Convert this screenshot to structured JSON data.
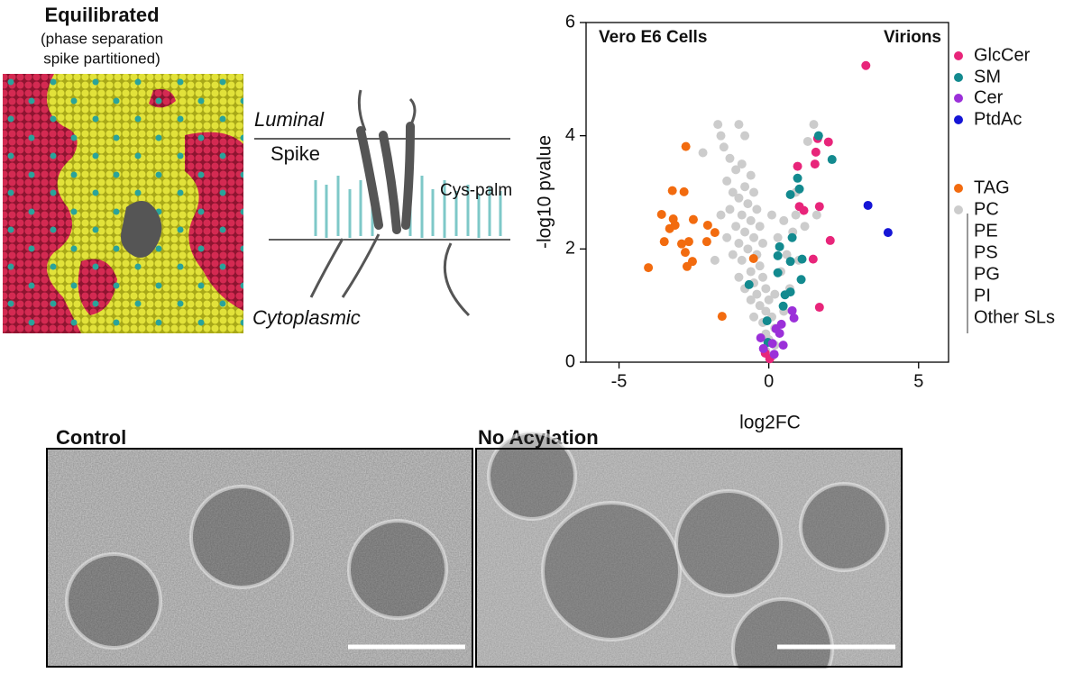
{
  "model": {
    "title": "Equilibrated",
    "subtitle_lines": [
      "(phase separation",
      "spike partitioned)"
    ],
    "luminal": "Luminal",
    "spike": "Spike",
    "cys_palm": "Cys-palm",
    "cytoplasmic": "Cytoplasmic"
  },
  "chart_data": {
    "type": "scatter",
    "xlabel": "log2FC",
    "ylabel": "-log10 pvalue",
    "annotations": [
      "Vero E6 Cells",
      "Virions"
    ],
    "xlim": [
      -6.1,
      6
    ],
    "xticks": [
      -5,
      0,
      5
    ],
    "ylim": [
      0,
      6
    ],
    "yticks": [
      0,
      2,
      4,
      6
    ],
    "series": [
      {
        "name": "GlcCer",
        "color": "#e8257a",
        "x": [
          3.24,
          1.63,
          1.99,
          1.57,
          1.54,
          0.96,
          1.69,
          1.02,
          1.17,
          2.05,
          1.48,
          1.69,
          0.03,
          -0.12
        ],
        "values": [
          5.24,
          3.95,
          3.89,
          3.71,
          3.5,
          3.46,
          2.75,
          2.75,
          2.68,
          2.15,
          1.82,
          0.97,
          0.06,
          0.16
        ]
      },
      {
        "name": "SM",
        "color": "#138a8f",
        "x": [
          1.66,
          2.11,
          0.96,
          1.02,
          0.72,
          0.78,
          0.72,
          0.36,
          0.3,
          1.11,
          0.3,
          1.08,
          0.72,
          0.54,
          0.48,
          -0.66,
          -0.06,
          -0.03
        ],
        "values": [
          4.0,
          3.58,
          3.25,
          3.06,
          2.96,
          2.2,
          1.78,
          2.04,
          1.88,
          1.82,
          1.58,
          1.46,
          1.24,
          1.19,
          0.99,
          1.37,
          0.73,
          0.35
        ]
      },
      {
        "name": "Cer",
        "color": "#9b30d9",
        "x": [
          0.78,
          0.84,
          0.42,
          0.24,
          0.36,
          -0.27,
          0.12,
          0.48,
          -0.18,
          0.18
        ],
        "values": [
          0.91,
          0.78,
          0.67,
          0.59,
          0.51,
          0.43,
          0.33,
          0.3,
          0.24,
          0.14
        ]
      },
      {
        "name": "PtdAc",
        "color": "#1515d6",
        "x": [
          3.31,
          3.98
        ],
        "values": [
          2.77,
          2.29
        ]
      },
      {
        "name": "TAG",
        "color": "#f26b0f",
        "x": [
          -2.77,
          -3.22,
          -2.83,
          -3.58,
          -3.19,
          -2.52,
          -3.31,
          -3.13,
          -2.04,
          -3.49,
          -1.8,
          -2.07,
          -2.67,
          -2.91,
          -2.79,
          -4.02,
          -0.51,
          -2.55,
          -2.73,
          -1.56
        ],
        "values": [
          3.81,
          3.03,
          3.01,
          2.61,
          2.53,
          2.52,
          2.36,
          2.42,
          2.42,
          2.13,
          2.29,
          2.13,
          2.13,
          2.09,
          1.94,
          1.67,
          1.83,
          1.78,
          1.69,
          0.81
        ]
      },
      {
        "name": "PC",
        "color": "#cccccc",
        "x": [
          -1.7,
          -1.0,
          -0.8,
          -1.6,
          -1.5,
          -2.2,
          -1.3,
          -0.9,
          -1.1,
          -0.6,
          -1.4,
          -0.8,
          -1.2,
          -0.5,
          -1.0,
          -0.7,
          -1.3,
          -0.4,
          -0.9,
          -1.6,
          -0.6,
          -1.1,
          -0.3,
          -0.8,
          -1.4,
          -0.5,
          -1.0,
          -0.2,
          -0.7,
          -1.2,
          -0.4,
          -0.9,
          -1.8,
          -0.3,
          -0.6,
          -1.0,
          -0.2,
          -0.5,
          -0.8,
          -0.1,
          -0.4,
          -0.6,
          0.0,
          -0.3,
          -0.1,
          -0.5,
          0.1,
          -0.2,
          0.2,
          -0.1,
          0.0,
          0.2,
          -0.1,
          0.1,
          1.5,
          1.3,
          0.9,
          0.5,
          0.8,
          0.3,
          1.2,
          0.6,
          0.4,
          0.7,
          0.2,
          0.5,
          1.6,
          1.0,
          0.9,
          0.1
        ],
        "values": [
          4.2,
          4.2,
          4.0,
          4.0,
          3.8,
          3.7,
          3.6,
          3.5,
          3.4,
          3.3,
          3.2,
          3.1,
          3.0,
          3.0,
          2.9,
          2.8,
          2.7,
          2.7,
          2.6,
          2.6,
          2.5,
          2.4,
          2.4,
          2.3,
          2.2,
          2.2,
          2.1,
          2.1,
          2.0,
          1.9,
          1.9,
          1.8,
          1.8,
          1.7,
          1.6,
          1.5,
          1.5,
          1.4,
          1.3,
          1.3,
          1.2,
          1.1,
          1.1,
          1.0,
          0.9,
          0.8,
          0.8,
          0.7,
          0.6,
          0.5,
          0.4,
          0.3,
          0.2,
          0.1,
          4.2,
          3.9,
          3.0,
          2.5,
          2.3,
          2.2,
          2.4,
          1.9,
          1.6,
          1.3,
          1.2,
          0.9,
          2.6,
          1.8,
          2.6,
          2.6
        ]
      }
    ],
    "legend_group": [
      "PE",
      "PS",
      "PG",
      "PI",
      "Other SLs"
    ]
  },
  "micrographs": {
    "control": "Control",
    "no_acylation": "No Acylation"
  }
}
